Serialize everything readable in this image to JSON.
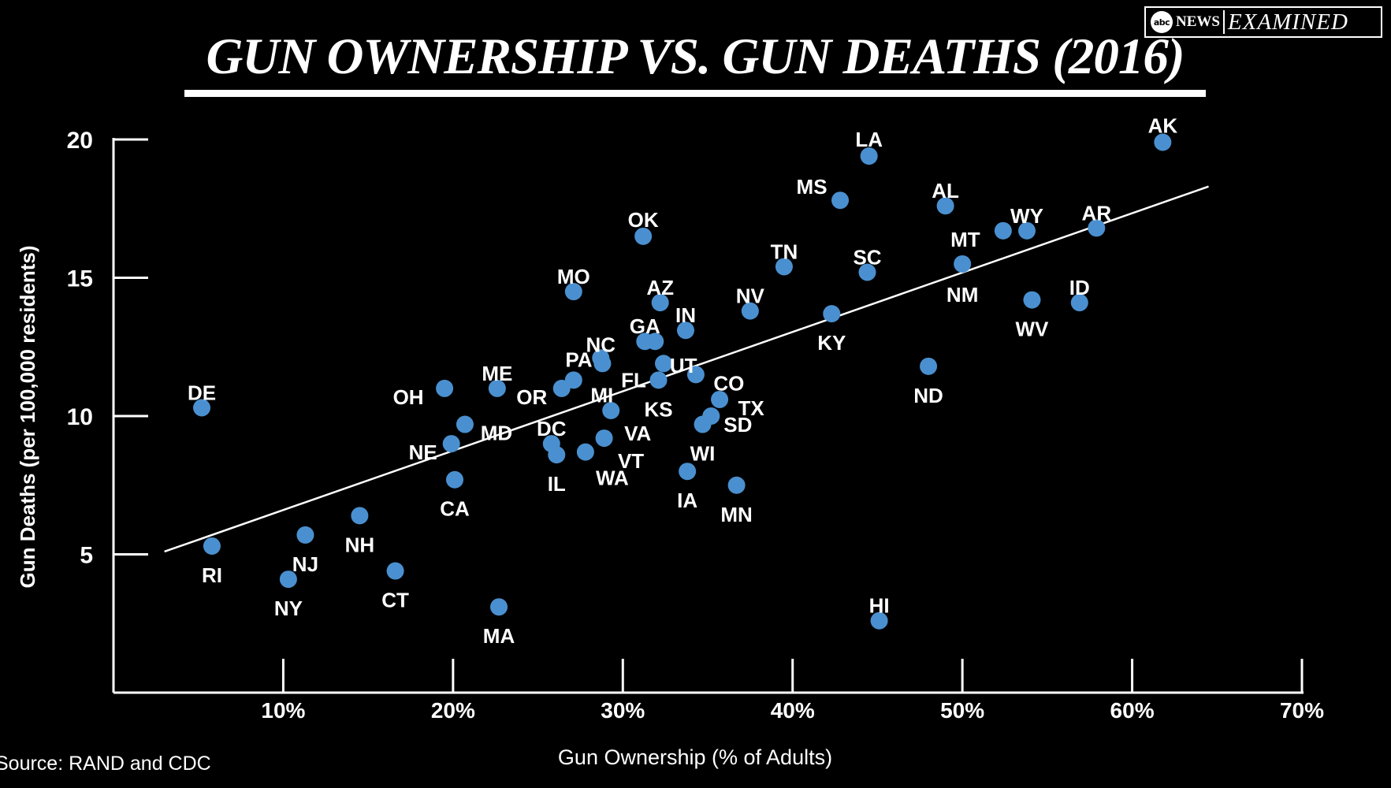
{
  "brand": {
    "network": "NEWS",
    "series": "EXAMINED"
  },
  "source": "Source: RAND and CDC",
  "chart_data": {
    "type": "scatter",
    "title": "GUN OWNERSHIP VS. GUN DEATHS (2016)",
    "xlabel": "Gun Ownership (% of Adults)",
    "ylabel": "Gun Deaths (per 100,000 residents)",
    "xlim": [
      0,
      70
    ],
    "ylim": [
      0,
      20
    ],
    "x_ticks": [
      10,
      20,
      30,
      40,
      50,
      60,
      70
    ],
    "x_tick_labels": [
      "10%",
      "20%",
      "30%",
      "40%",
      "50%",
      "60%",
      "70%"
    ],
    "y_ticks": [
      5,
      10,
      15,
      20
    ],
    "y_tick_labels": [
      "5",
      "10",
      "15",
      "20"
    ],
    "grid": false,
    "legend": "none",
    "point_color": "#4a90d0",
    "trendline": {
      "x": [
        3,
        64.5
      ],
      "y": [
        5.1,
        18.3
      ]
    },
    "points": [
      {
        "label": "AK",
        "x": 61.8,
        "y": 19.9
      },
      {
        "label": "LA",
        "x": 44.5,
        "y": 19.4
      },
      {
        "label": "MS",
        "x": 42.8,
        "y": 17.8
      },
      {
        "label": "AL",
        "x": 49.0,
        "y": 17.6
      },
      {
        "label": "AR",
        "x": 57.9,
        "y": 16.8
      },
      {
        "label": "WY",
        "x": 53.8,
        "y": 16.7
      },
      {
        "label": "MT",
        "x": 52.4,
        "y": 16.7
      },
      {
        "label": "OK",
        "x": 31.2,
        "y": 16.5
      },
      {
        "label": "TN",
        "x": 39.5,
        "y": 15.4
      },
      {
        "label": "SC",
        "x": 44.4,
        "y": 15.2
      },
      {
        "label": "NM",
        "x": 50.0,
        "y": 15.5
      },
      {
        "label": "MO",
        "x": 27.1,
        "y": 14.5
      },
      {
        "label": "WV",
        "x": 54.1,
        "y": 14.2
      },
      {
        "label": "ID",
        "x": 56.9,
        "y": 14.1
      },
      {
        "label": "AZ",
        "x": 32.2,
        "y": 14.1
      },
      {
        "label": "NV",
        "x": 37.5,
        "y": 13.8
      },
      {
        "label": "KY",
        "x": 42.3,
        "y": 13.7
      },
      {
        "label": "IN",
        "x": 33.7,
        "y": 13.1
      },
      {
        "label": "GA",
        "x": 31.3,
        "y": 12.7
      },
      {
        "label": "UT",
        "x": 31.9,
        "y": 12.7
      },
      {
        "label": "NC",
        "x": 28.7,
        "y": 12.1
      },
      {
        "label": "FL",
        "x": 32.4,
        "y": 11.9
      },
      {
        "label": "PA",
        "x": 28.8,
        "y": 11.9
      },
      {
        "label": "ND",
        "x": 48.0,
        "y": 11.8
      },
      {
        "label": "CO",
        "x": 34.3,
        "y": 11.5
      },
      {
        "label": "MI",
        "x": 27.1,
        "y": 11.3
      },
      {
        "label": "KS",
        "x": 32.1,
        "y": 11.3
      },
      {
        "label": "OR",
        "x": 26.4,
        "y": 11.0
      },
      {
        "label": "OH",
        "x": 19.5,
        "y": 11.0
      },
      {
        "label": "ME",
        "x": 22.6,
        "y": 11.0
      },
      {
        "label": "TX",
        "x": 35.7,
        "y": 10.6
      },
      {
        "label": "DE",
        "x": 5.2,
        "y": 10.3
      },
      {
        "label": "VA",
        "x": 29.3,
        "y": 10.2
      },
      {
        "label": "SD",
        "x": 35.2,
        "y": 10.0
      },
      {
        "label": "WI",
        "x": 34.7,
        "y": 9.7
      },
      {
        "label": "MD",
        "x": 20.7,
        "y": 9.7
      },
      {
        "label": "VT",
        "x": 28.9,
        "y": 9.2
      },
      {
        "label": "NE",
        "x": 19.9,
        "y": 9.0
      },
      {
        "label": "DC",
        "x": 25.8,
        "y": 9.0
      },
      {
        "label": "IL",
        "x": 26.1,
        "y": 8.6
      },
      {
        "label": "WA",
        "x": 27.8,
        "y": 8.7
      },
      {
        "label": "IA",
        "x": 33.8,
        "y": 8.0
      },
      {
        "label": "CA",
        "x": 20.1,
        "y": 7.7
      },
      {
        "label": "MN",
        "x": 36.7,
        "y": 7.5
      },
      {
        "label": "NH",
        "x": 14.5,
        "y": 6.4
      },
      {
        "label": "NJ",
        "x": 11.3,
        "y": 5.7
      },
      {
        "label": "RI",
        "x": 5.8,
        "y": 5.3
      },
      {
        "label": "CT",
        "x": 16.6,
        "y": 4.4
      },
      {
        "label": "NY",
        "x": 10.3,
        "y": 4.1
      },
      {
        "label": "MA",
        "x": 22.7,
        "y": 3.1
      },
      {
        "label": "HI",
        "x": 45.1,
        "y": 2.6
      }
    ]
  }
}
